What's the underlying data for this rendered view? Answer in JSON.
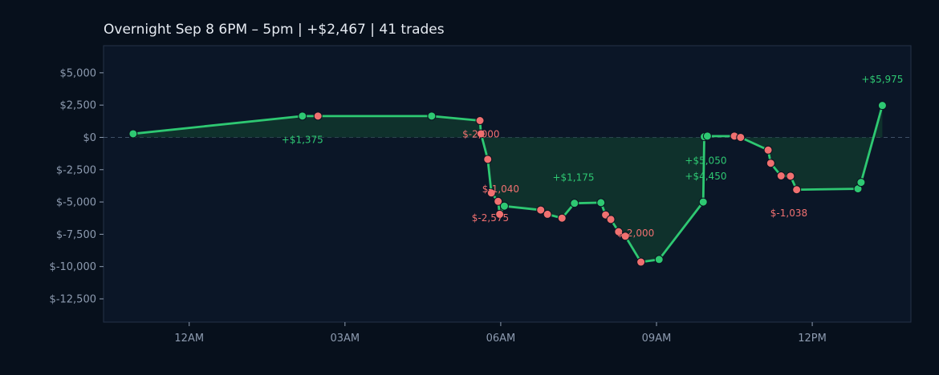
{
  "chart_data": {
    "type": "line",
    "title": "Overnight  Sep 8 6PM – 5pm  |  +$2,467  |  41 trades",
    "xlabel": "",
    "ylabel": "",
    "x_unit": "hours since midnight (Sep 9)",
    "xlim": [
      -1.65,
      13.9
    ],
    "ylim": [
      -14300,
      7100
    ],
    "grid": false,
    "zero_line": true,
    "xticks": [
      {
        "value": 0,
        "label": "12AM"
      },
      {
        "value": 3,
        "label": "03AM"
      },
      {
        "value": 6,
        "label": "06AM"
      },
      {
        "value": 9,
        "label": "09AM"
      },
      {
        "value": 12,
        "label": "12PM"
      }
    ],
    "yticks": [
      {
        "value": 5000,
        "label": "$5,000"
      },
      {
        "value": 2500,
        "label": "$2,500"
      },
      {
        "value": 0,
        "label": "$0"
      },
      {
        "value": -2500,
        "label": "$-2,500"
      },
      {
        "value": -5000,
        "label": "$-5,000"
      },
      {
        "value": -7500,
        "label": "$-7,500"
      },
      {
        "value": -10000,
        "label": "$-10,000"
      },
      {
        "value": -12500,
        "label": "$-12,500"
      }
    ],
    "colors": {
      "line": "#2ec872",
      "win": "#2ec872",
      "loss": "#f07070",
      "fill": "#10362e",
      "plot_bg": "#0b1627",
      "axis": "#243247"
    },
    "series": [
      {
        "points": [
          {
            "x": -1.08,
            "y": 280,
            "result": "win"
          },
          {
            "x": 2.18,
            "y": 1650,
            "result": "win"
          },
          {
            "x": 2.48,
            "y": 1650,
            "result": "loss"
          },
          {
            "x": 4.67,
            "y": 1650,
            "result": "win"
          },
          {
            "x": 5.6,
            "y": 1300,
            "result": "loss"
          },
          {
            "x": 5.62,
            "y": 280,
            "result": "loss"
          },
          {
            "x": 5.75,
            "y": -1700,
            "result": "loss"
          },
          {
            "x": 5.82,
            "y": -4300,
            "result": "loss"
          },
          {
            "x": 5.95,
            "y": -4950,
            "result": "loss"
          },
          {
            "x": 5.98,
            "y": -5950,
            "result": "loss"
          },
          {
            "x": 6.07,
            "y": -5320,
            "result": "win"
          },
          {
            "x": 6.77,
            "y": -5620,
            "result": "loss"
          },
          {
            "x": 6.9,
            "y": -5950,
            "result": "loss"
          },
          {
            "x": 7.18,
            "y": -6250,
            "result": "loss"
          },
          {
            "x": 7.42,
            "y": -5100,
            "result": "win"
          },
          {
            "x": 7.93,
            "y": -5050,
            "result": "win"
          },
          {
            "x": 8.02,
            "y": -6000,
            "result": "loss"
          },
          {
            "x": 8.12,
            "y": -6350,
            "result": "loss"
          },
          {
            "x": 8.27,
            "y": -7300,
            "result": "loss"
          },
          {
            "x": 8.4,
            "y": -7650,
            "result": "loss"
          },
          {
            "x": 8.7,
            "y": -9650,
            "result": "loss"
          },
          {
            "x": 9.05,
            "y": -9450,
            "result": "win"
          },
          {
            "x": 9.9,
            "y": -5000,
            "result": "win"
          },
          {
            "x": 9.92,
            "y": 50,
            "result": "win"
          },
          {
            "x": 9.98,
            "y": 100,
            "result": "win"
          },
          {
            "x": 10.5,
            "y": 100,
            "result": "loss"
          },
          {
            "x": 10.62,
            "y": 0,
            "result": "loss"
          },
          {
            "x": 11.15,
            "y": -980,
            "result": "loss"
          },
          {
            "x": 11.2,
            "y": -2000,
            "result": "loss"
          },
          {
            "x": 11.4,
            "y": -2980,
            "result": "loss"
          },
          {
            "x": 11.58,
            "y": -3000,
            "result": "loss"
          },
          {
            "x": 11.7,
            "y": -4050,
            "result": "loss"
          },
          {
            "x": 12.88,
            "y": -3980,
            "result": "win"
          },
          {
            "x": 12.94,
            "y": -3480,
            "result": "win"
          },
          {
            "x": 13.35,
            "y": 2470,
            "result": "win"
          }
        ]
      }
    ],
    "annotations": [
      {
        "text": "+$1,375",
        "x": 2.18,
        "y": -200,
        "result": "win"
      },
      {
        "text": "$-2,000",
        "x": 5.62,
        "y": 250,
        "result": "loss"
      },
      {
        "text": "$-1,040",
        "x": 6.0,
        "y": -4000,
        "result": "loss"
      },
      {
        "text": "$-2,575",
        "x": 5.8,
        "y": -6250,
        "result": "loss"
      },
      {
        "text": "+$1,175",
        "x": 7.4,
        "y": -3100,
        "result": "win"
      },
      {
        "text": "$-2,000",
        "x": 8.6,
        "y": -7400,
        "result": "loss"
      },
      {
        "text": "+$5,050",
        "x": 9.95,
        "y": -1800,
        "result": "win"
      },
      {
        "text": "+$4,450",
        "x": 9.95,
        "y": -3000,
        "result": "win"
      },
      {
        "text": "$-1,038",
        "x": 11.55,
        "y": -5850,
        "result": "loss"
      },
      {
        "text": "+$5,975",
        "x": 13.35,
        "y": 4500,
        "result": "win"
      }
    ]
  }
}
